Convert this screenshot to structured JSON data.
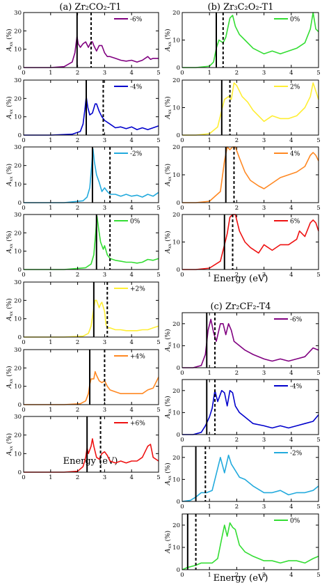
{
  "figure": {
    "col_a_title": "(a) Zr₂CO₂-T1",
    "col_b_title": "(b) Zr₃C₂O₂-T1",
    "col_c_title": "(c) Zr₂CF₂-T4",
    "xlabel": "Energy (eV)",
    "ylabel": "A",
    "ylabel_sub": "xx",
    "ylabel_unit": " (%)"
  },
  "chart_data": [
    {
      "group": "a",
      "type": "line",
      "legend": "-6%",
      "color": "#800080",
      "xlim": [
        0,
        5
      ],
      "ylim": [
        0,
        30
      ],
      "yticks": [
        0,
        10,
        20,
        30
      ],
      "vlines": {
        "solid": 1.98,
        "dashed": 2.5
      },
      "x": [
        0,
        1,
        1.5,
        1.8,
        1.9,
        1.95,
        1.98,
        2.02,
        2.1,
        2.2,
        2.3,
        2.4,
        2.5,
        2.55,
        2.6,
        2.7,
        2.8,
        2.9,
        3.0,
        3.1,
        3.2,
        3.4,
        3.6,
        3.8,
        4.0,
        4.2,
        4.4,
        4.6,
        4.7,
        4.8,
        5
      ],
      "y": [
        0,
        0,
        0.5,
        3,
        8,
        14,
        17,
        13,
        11,
        13,
        14,
        11,
        14,
        14,
        12,
        9,
        12,
        12,
        8,
        6,
        6,
        5,
        4,
        3.5,
        4,
        3,
        4,
        6,
        4.5,
        5,
        5
      ]
    },
    {
      "group": "a",
      "type": "line",
      "legend": "-4%",
      "color": "#0000cc",
      "xlim": [
        0,
        5
      ],
      "ylim": [
        0,
        30
      ],
      "yticks": [
        0,
        10,
        20,
        30
      ],
      "vlines": {
        "solid": 2.32,
        "dashed": 2.95
      },
      "x": [
        0,
        1,
        1.8,
        2.1,
        2.2,
        2.27,
        2.32,
        2.38,
        2.45,
        2.55,
        2.65,
        2.7,
        2.8,
        2.9,
        3.0,
        3.2,
        3.4,
        3.6,
        3.8,
        4.0,
        4.2,
        4.4,
        4.6,
        4.8,
        5
      ],
      "y": [
        0,
        0,
        0.5,
        2,
        6,
        14,
        21,
        15,
        11,
        12,
        17,
        17,
        13,
        10,
        8,
        6,
        4,
        4.5,
        3.5,
        4.5,
        3,
        4,
        3,
        4,
        5
      ]
    },
    {
      "group": "a",
      "type": "line",
      "legend": "-2%",
      "color": "#22aadd",
      "xlim": [
        0,
        5
      ],
      "ylim": [
        0,
        30
      ],
      "yticks": [
        0,
        10,
        20,
        30
      ],
      "vlines": {
        "solid": 2.55,
        "dashed": 3.2
      },
      "x": [
        0,
        1.5,
        2.2,
        2.35,
        2.45,
        2.52,
        2.57,
        2.62,
        2.7,
        2.8,
        2.9,
        3.0,
        3.1,
        3.2,
        3.4,
        3.6,
        3.8,
        4.0,
        4.2,
        4.4,
        4.6,
        4.8,
        5
      ],
      "y": [
        0,
        0,
        1,
        3,
        8,
        20,
        29,
        22,
        15,
        11,
        6,
        8,
        6,
        4.5,
        4.5,
        3.5,
        4.5,
        3.5,
        4,
        3,
        4.5,
        3.5,
        5.5
      ]
    },
    {
      "group": "a",
      "type": "line",
      "legend": "0%",
      "color": "#33dd33",
      "xlim": [
        0,
        5
      ],
      "ylim": [
        0,
        30
      ],
      "yticks": [
        0,
        10,
        20,
        30
      ],
      "vlines": {
        "solid": 2.7,
        "dashed": 3.2
      },
      "x": [
        0,
        1.5,
        2.3,
        2.5,
        2.6,
        2.67,
        2.72,
        2.78,
        2.85,
        2.95,
        3.0,
        3.1,
        3.2,
        3.4,
        3.6,
        3.8,
        4.0,
        4.2,
        4.4,
        4.6,
        4.8,
        5
      ],
      "y": [
        0,
        0,
        1,
        3,
        8,
        20,
        29,
        22,
        15,
        11,
        13,
        8,
        6,
        5,
        4.5,
        4,
        4,
        3.5,
        4,
        5.5,
        5,
        6
      ]
    },
    {
      "group": "a",
      "type": "line",
      "legend": "+2%",
      "color": "#ffee33",
      "xlim": [
        0,
        5
      ],
      "ylim": [
        0,
        30
      ],
      "yticks": [
        0,
        10,
        20,
        30
      ],
      "vlines": {
        "solid": 2.6,
        "dashed": 3.1
      },
      "x": [
        0,
        1.5,
        2.2,
        2.4,
        2.5,
        2.6,
        2.65,
        2.7,
        2.8,
        2.85,
        2.9,
        3.0,
        3.05,
        3.1,
        3.2,
        3.4,
        3.6,
        3.8,
        4.0,
        4.2,
        4.4,
        4.6,
        4.8,
        5
      ],
      "y": [
        0,
        0,
        0.5,
        2,
        6,
        16,
        20,
        20,
        16,
        18,
        19,
        14,
        7,
        5,
        5,
        4,
        4,
        3.5,
        3.5,
        3.5,
        4,
        4,
        5,
        6
      ]
    },
    {
      "group": "a",
      "type": "line",
      "legend": "+4%",
      "color": "#ff8822",
      "xlim": [
        0,
        5
      ],
      "ylim": [
        0,
        30
      ],
      "yticks": [
        0,
        10,
        20,
        30
      ],
      "vlines": {
        "solid": 2.45,
        "dashed": 3.0
      },
      "x": [
        0,
        1.5,
        2.1,
        2.3,
        2.4,
        2.45,
        2.5,
        2.6,
        2.65,
        2.7,
        2.8,
        2.9,
        3.0,
        3.1,
        3.2,
        3.4,
        3.6,
        3.8,
        4.0,
        4.2,
        4.4,
        4.6,
        4.8,
        5
      ],
      "y": [
        0,
        0,
        0.5,
        2,
        6,
        11,
        14,
        14,
        18,
        16,
        13,
        12,
        13,
        10,
        8,
        7,
        6,
        6,
        6,
        6,
        6,
        8,
        9,
        15
      ]
    },
    {
      "group": "a",
      "type": "line",
      "legend": "+6%",
      "color": "#ee1111",
      "xlim": [
        0,
        5
      ],
      "ylim": [
        0,
        30
      ],
      "yticks": [
        0,
        10,
        20,
        30
      ],
      "vlines": {
        "solid": 2.35,
        "dashed": 2.85
      },
      "x": [
        0,
        1.5,
        2.0,
        2.2,
        2.3,
        2.35,
        2.4,
        2.5,
        2.55,
        2.6,
        2.7,
        2.8,
        2.9,
        3.0,
        3.1,
        3.2,
        3.4,
        3.6,
        3.8,
        4.0,
        4.2,
        4.4,
        4.5,
        4.6,
        4.7,
        4.8,
        5
      ],
      "y": [
        0,
        0,
        0.5,
        3,
        8,
        13,
        10,
        14,
        18,
        14,
        8,
        7,
        10,
        11,
        9,
        6,
        5,
        6,
        5,
        6,
        6,
        8,
        11,
        14,
        15,
        8,
        6
      ]
    },
    {
      "group": "b",
      "type": "line",
      "legend": "0%",
      "color": "#33dd33",
      "xlim": [
        0,
        5
      ],
      "ylim": [
        0,
        20
      ],
      "yticks": [
        0,
        10,
        20
      ],
      "vlines": {
        "solid": 1.25,
        "dashed": 1.5
      },
      "x": [
        0,
        0.5,
        1.0,
        1.15,
        1.25,
        1.35,
        1.5,
        1.6,
        1.75,
        1.85,
        1.95,
        2.1,
        2.3,
        2.6,
        3.0,
        3.3,
        3.6,
        3.9,
        4.2,
        4.5,
        4.7,
        4.8,
        4.9,
        5
      ],
      "y": [
        0,
        0,
        0.5,
        2,
        7,
        10,
        9,
        11,
        18,
        19,
        15,
        12,
        10,
        7,
        5,
        6,
        5,
        6,
        7,
        9,
        14,
        20,
        14,
        13
      ]
    },
    {
      "group": "b",
      "type": "line",
      "legend": "2%",
      "color": "#ffee33",
      "xlim": [
        0,
        5
      ],
      "ylim": [
        0,
        20
      ],
      "yticks": [
        0,
        10,
        20
      ],
      "vlines": {
        "solid": 1.45,
        "dashed": 1.75
      },
      "x": [
        0,
        0.5,
        1.0,
        1.3,
        1.45,
        1.55,
        1.7,
        1.8,
        1.9,
        2.0,
        2.2,
        2.4,
        2.6,
        3.0,
        3.3,
        3.6,
        3.9,
        4.2,
        4.5,
        4.7,
        4.8,
        4.9,
        5
      ],
      "y": [
        0,
        0,
        0.5,
        3,
        9,
        13,
        14,
        13,
        19,
        18,
        14,
        12,
        9,
        5,
        7,
        6,
        6,
        7,
        10,
        14,
        19,
        16,
        13
      ]
    },
    {
      "group": "b",
      "type": "line",
      "legend": "4%",
      "color": "#ff8822",
      "xlim": [
        0,
        5
      ],
      "ylim": [
        0,
        20
      ],
      "yticks": [
        0,
        10,
        20
      ],
      "vlines": {
        "solid": 1.6,
        "dashed": 1.9
      },
      "x": [
        0,
        0.5,
        1.0,
        1.4,
        1.55,
        1.65,
        1.75,
        1.85,
        1.95,
        2.1,
        2.3,
        2.5,
        2.8,
        3.0,
        3.3,
        3.6,
        3.9,
        4.2,
        4.5,
        4.7,
        4.8,
        4.9,
        5
      ],
      "y": [
        0,
        0,
        0.5,
        4,
        15,
        21,
        19,
        21,
        21,
        16,
        11,
        8,
        6,
        5,
        7,
        9,
        10,
        11,
        13,
        17,
        18,
        17,
        15
      ]
    },
    {
      "group": "b",
      "type": "line",
      "legend": "6%",
      "color": "#ee1111",
      "xlim": [
        0,
        5
      ],
      "ylim": [
        0,
        20
      ],
      "yticks": [
        0,
        10,
        20
      ],
      "vlines": {
        "solid": 1.55,
        "dashed": 1.85
      },
      "x": [
        0,
        0.5,
        1.0,
        1.4,
        1.55,
        1.65,
        1.75,
        1.85,
        1.95,
        2.1,
        2.3,
        2.5,
        2.8,
        3.0,
        3.3,
        3.6,
        3.9,
        4.2,
        4.3,
        4.5,
        4.7,
        4.8,
        4.9,
        5
      ],
      "y": [
        0,
        0,
        0.5,
        3,
        9,
        13,
        19,
        27,
        21,
        14,
        10,
        8,
        6,
        9,
        7,
        9,
        9,
        11,
        14,
        12,
        17,
        18,
        17,
        14
      ]
    },
    {
      "group": "c",
      "type": "line",
      "legend": "-6%",
      "color": "#800080",
      "xlim": [
        0,
        5
      ],
      "ylim": [
        0,
        25
      ],
      "yticks": [
        0,
        10,
        20
      ],
      "vlines": {
        "solid": 0.9,
        "dashed": 1.2
      },
      "x": [
        0,
        0.4,
        0.7,
        0.85,
        0.95,
        1.05,
        1.15,
        1.25,
        1.4,
        1.5,
        1.6,
        1.7,
        1.8,
        1.9,
        2.1,
        2.3,
        2.6,
        3.0,
        3.3,
        3.6,
        3.9,
        4.2,
        4.5,
        4.8,
        5
      ],
      "y": [
        0,
        0,
        1,
        6,
        17,
        22,
        16,
        12,
        20,
        20,
        15,
        20,
        17,
        12,
        10,
        8,
        6,
        4,
        3,
        4,
        3,
        4,
        5,
        9,
        8
      ]
    },
    {
      "group": "c",
      "type": "line",
      "legend": "-4%",
      "color": "#0000cc",
      "xlim": [
        0,
        5
      ],
      "ylim": [
        0,
        25
      ],
      "yticks": [
        0,
        10,
        20
      ],
      "vlines": {
        "solid": 0.9,
        "dashed": 1.2
      },
      "x": [
        0,
        0.4,
        0.7,
        0.85,
        1.0,
        1.1,
        1.2,
        1.3,
        1.45,
        1.55,
        1.65,
        1.75,
        1.85,
        1.95,
        2.1,
        2.3,
        2.6,
        3.0,
        3.3,
        3.6,
        3.9,
        4.2,
        4.5,
        4.8,
        5
      ],
      "y": [
        0,
        0,
        1,
        4,
        8,
        12,
        20,
        15,
        20,
        19,
        13,
        20,
        19,
        13,
        10,
        8,
        5,
        4,
        3,
        4,
        3,
        4,
        5,
        6,
        9
      ]
    },
    {
      "group": "c",
      "type": "line",
      "legend": "-2%",
      "color": "#22aadd",
      "xlim": [
        0,
        5
      ],
      "ylim": [
        0,
        25
      ],
      "yticks": [
        0,
        10,
        20
      ],
      "vlines": {
        "solid": 0.5,
        "dashed": 0.85
      },
      "x": [
        0,
        0.3,
        0.5,
        0.7,
        0.9,
        1.1,
        1.3,
        1.4,
        1.55,
        1.7,
        1.8,
        1.9,
        2.1,
        2.3,
        2.6,
        3.0,
        3.3,
        3.6,
        3.9,
        4.2,
        4.5,
        4.8,
        5
      ],
      "y": [
        0,
        0.5,
        2,
        4,
        4,
        5,
        15,
        20,
        13,
        21,
        17,
        15,
        11,
        10,
        7,
        4,
        4,
        5,
        3,
        4,
        4,
        5,
        7
      ]
    },
    {
      "group": "c",
      "type": "line",
      "legend": "0%",
      "color": "#33dd33",
      "xlim": [
        0,
        5
      ],
      "ylim": [
        0,
        25
      ],
      "yticks": [
        0,
        10,
        20
      ],
      "vlines": {
        "solid": 0.2,
        "dashed": 0.5
      },
      "x": [
        0,
        0.2,
        0.5,
        0.7,
        0.9,
        1.1,
        1.3,
        1.45,
        1.55,
        1.65,
        1.75,
        1.85,
        1.95,
        2.1,
        2.3,
        2.6,
        3.0,
        3.3,
        3.6,
        3.9,
        4.2,
        4.5,
        4.8,
        5
      ],
      "y": [
        0,
        1,
        2,
        3,
        3,
        3,
        5,
        14,
        20,
        15,
        21,
        19,
        18,
        11,
        8,
        6,
        4,
        4,
        3,
        4,
        4,
        3,
        5,
        6
      ]
    }
  ]
}
